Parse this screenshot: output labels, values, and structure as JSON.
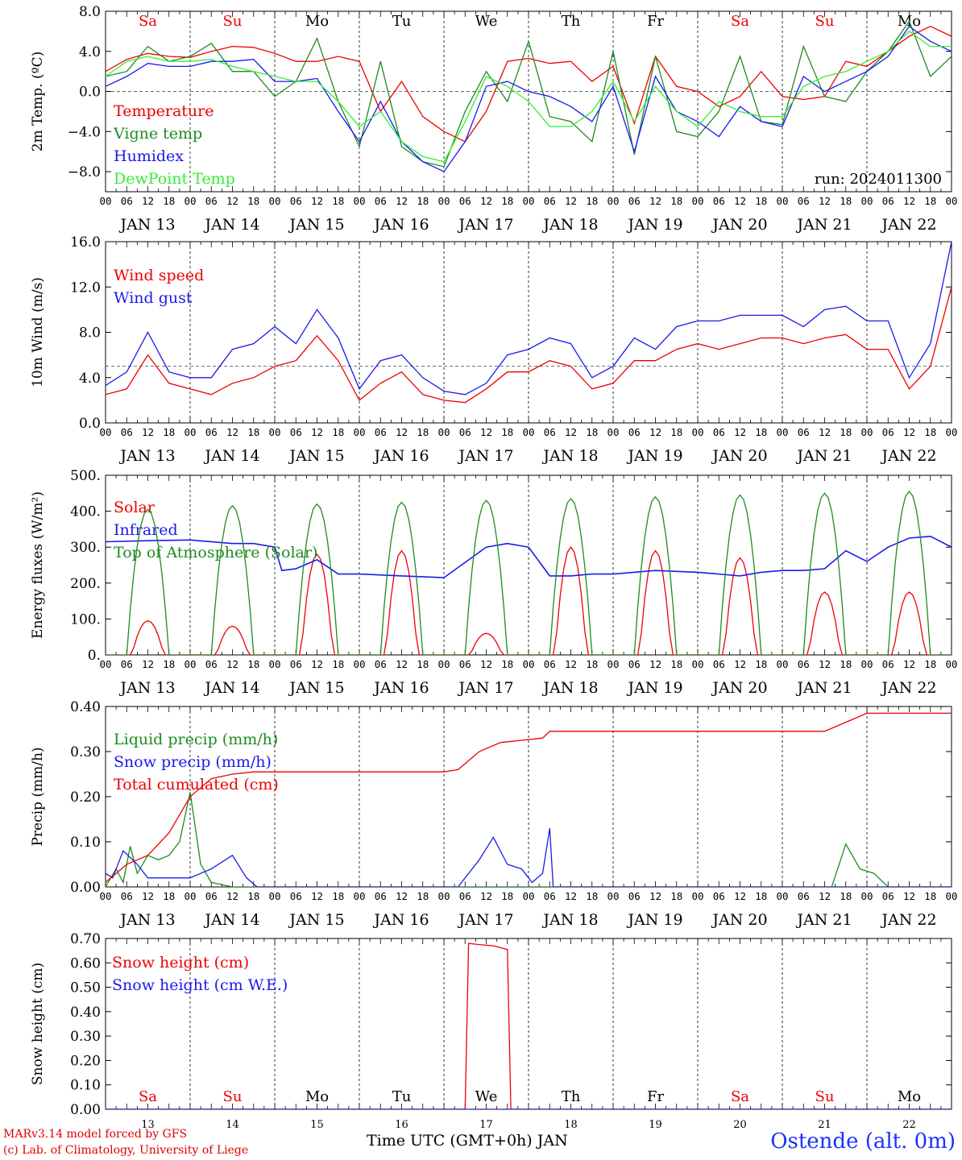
{
  "colors": {
    "red": "#ee0000",
    "darkgreen": "#1e8c1e",
    "blue": "#1a1aee",
    "lightgreen": "#33ee33",
    "axis": "#000000",
    "weekend": "#ee0000",
    "weekday": "#000000"
  },
  "days": [
    "Sa",
    "Su",
    "Mo",
    "Tu",
    "We",
    "Th",
    "Fr",
    "Sa",
    "Su",
    "Mo"
  ],
  "weekend_flags": [
    true,
    true,
    false,
    false,
    false,
    false,
    false,
    true,
    true,
    false
  ],
  "date_labels": [
    "JAN 13",
    "JAN 14",
    "JAN 15",
    "JAN 16",
    "JAN 17",
    "JAN 18",
    "JAN 19",
    "JAN 20",
    "JAN 21",
    "JAN 22"
  ],
  "bottom_day_numbers": [
    "13",
    "14",
    "15",
    "16",
    "17",
    "18",
    "19",
    "20",
    "21",
    "22"
  ],
  "hour_ticks": [
    "00",
    "06",
    "12",
    "18"
  ],
  "credits": {
    "line1": "MARv3.14 model forced by GFS",
    "line2": "(c) Lab. of Climatology, University of Liege"
  },
  "xaxis_title": "Time UTC (GMT+0h) JAN",
  "station": "Ostende (alt. 0m)",
  "run_label": "run: 2024011300",
  "chart_data": [
    {
      "type": "line",
      "ylabel": "2m Temp. (ºC)",
      "ylim": [
        -10,
        8
      ],
      "yticks": [
        "8.0",
        "4.0",
        "0.0",
        "−4.0",
        "−8.0"
      ],
      "ytick_values": [
        8,
        4,
        0,
        -4,
        -8
      ],
      "refline": 0,
      "series": [
        {
          "name": "Temperature",
          "color": "red",
          "x": [
            0,
            6,
            12,
            18,
            24,
            30,
            36,
            42,
            48,
            54,
            60,
            66,
            72,
            78,
            84,
            90,
            96,
            102,
            108,
            114,
            120,
            126,
            132,
            138,
            144,
            150,
            156,
            162,
            168,
            174,
            180,
            186,
            192,
            198,
            204,
            210,
            216,
            222,
            228,
            234,
            240
          ],
          "y": [
            2.0,
            3.2,
            3.8,
            3.5,
            3.4,
            4.0,
            4.5,
            4.4,
            3.8,
            3.0,
            3.0,
            3.5,
            3.0,
            -2.0,
            1.0,
            -2.5,
            -4.0,
            -5.0,
            -2.0,
            3.0,
            3.3,
            2.8,
            3.0,
            1.0,
            2.5,
            -3.2,
            3.5,
            0.5,
            0.0,
            -1.5,
            -0.5,
            2.0,
            -0.5,
            -0.8,
            -0.5,
            3.0,
            2.5,
            4.0,
            5.5,
            6.5,
            5.5
          ]
        },
        {
          "name": "Vigne temp",
          "color": "darkgreen",
          "x": [
            0,
            6,
            12,
            18,
            24,
            30,
            36,
            42,
            48,
            54,
            60,
            66,
            72,
            78,
            84,
            90,
            96,
            102,
            108,
            114,
            120,
            126,
            132,
            138,
            144,
            150,
            156,
            162,
            168,
            174,
            180,
            186,
            192,
            198,
            204,
            210,
            216,
            222,
            228,
            234,
            240
          ],
          "y": [
            1.5,
            2.0,
            4.5,
            3.0,
            3.5,
            4.8,
            2.0,
            2.0,
            -0.5,
            1.0,
            5.3,
            -1.0,
            -5.5,
            3.0,
            -5.5,
            -7.0,
            -7.5,
            -2.0,
            2.0,
            -1.0,
            5.0,
            -2.5,
            -3.0,
            -5.0,
            4.0,
            -6.3,
            3.5,
            -4.0,
            -4.5,
            -2.0,
            3.5,
            -3.0,
            -3.3,
            4.5,
            -0.5,
            -1.0,
            2.0,
            4.0,
            7.0,
            1.5,
            3.5
          ]
        },
        {
          "name": "Humidex",
          "color": "blue",
          "x": [
            0,
            6,
            12,
            18,
            24,
            30,
            36,
            42,
            48,
            54,
            60,
            66,
            72,
            78,
            84,
            90,
            96,
            102,
            108,
            114,
            120,
            126,
            132,
            138,
            144,
            150,
            156,
            162,
            168,
            174,
            180,
            186,
            192,
            198,
            204,
            210,
            216,
            222,
            228,
            234,
            240
          ],
          "y": [
            0.5,
            1.5,
            2.8,
            2.5,
            2.5,
            3.0,
            3.0,
            3.2,
            1.0,
            1.0,
            1.3,
            -2.0,
            -5.0,
            -1.0,
            -5.0,
            -7.0,
            -8.0,
            -5.0,
            0.5,
            1.0,
            0.0,
            -0.5,
            -1.5,
            -3.0,
            0.5,
            -6.0,
            1.5,
            -2.0,
            -3.0,
            -4.5,
            -1.5,
            -3.0,
            -3.5,
            1.5,
            0.0,
            1.0,
            2.0,
            3.5,
            6.5,
            5.0,
            4.0
          ]
        },
        {
          "name": "DewPoint Temp",
          "color": "lightgreen",
          "x": [
            0,
            6,
            12,
            18,
            24,
            30,
            36,
            42,
            48,
            54,
            60,
            66,
            72,
            78,
            84,
            90,
            96,
            102,
            108,
            114,
            120,
            126,
            132,
            138,
            144,
            150,
            156,
            162,
            168,
            174,
            180,
            186,
            192,
            198,
            204,
            210,
            216,
            222,
            228,
            234,
            240
          ],
          "y": [
            1.5,
            3.0,
            3.5,
            3.0,
            3.0,
            3.2,
            2.5,
            2.0,
            1.5,
            1.0,
            1.0,
            -1.0,
            -3.5,
            -2.0,
            -5.0,
            -6.5,
            -7.0,
            -3.0,
            1.5,
            0.5,
            -1.0,
            -3.5,
            -3.5,
            -2.0,
            1.0,
            -3.0,
            0.5,
            -2.0,
            -3.5,
            -1.0,
            -2.0,
            -2.5,
            -2.5,
            0.5,
            1.5,
            2.0,
            3.0,
            4.0,
            6.0,
            4.5,
            4.5
          ]
        }
      ]
    },
    {
      "type": "line",
      "ylabel": "10m Wind (m/s)",
      "ylim": [
        0,
        16
      ],
      "yticks": [
        "16.0",
        "12.0",
        "8.0",
        "4.0",
        "0.0"
      ],
      "ytick_values": [
        16,
        12,
        8,
        4,
        0
      ],
      "refline": 5,
      "series": [
        {
          "name": "Wind speed",
          "color": "red",
          "x": [
            0,
            6,
            12,
            18,
            24,
            30,
            36,
            42,
            48,
            54,
            60,
            66,
            72,
            78,
            84,
            90,
            96,
            102,
            108,
            114,
            120,
            126,
            132,
            138,
            144,
            150,
            156,
            162,
            168,
            174,
            180,
            186,
            192,
            198,
            204,
            210,
            216,
            222,
            228,
            234,
            240
          ],
          "y": [
            2.5,
            3.0,
            6.0,
            3.5,
            3.0,
            2.5,
            3.5,
            4.0,
            5.0,
            5.5,
            7.7,
            5.5,
            2.0,
            3.5,
            4.5,
            2.5,
            2.0,
            1.8,
            3.0,
            4.5,
            4.5,
            5.5,
            5.0,
            3.0,
            3.5,
            5.5,
            5.5,
            6.5,
            7.0,
            6.5,
            7.0,
            7.5,
            7.5,
            7.0,
            7.5,
            7.8,
            6.5,
            6.5,
            3.0,
            5.0,
            12.0
          ]
        },
        {
          "name": "Wind gust",
          "color": "blue",
          "x": [
            0,
            6,
            12,
            18,
            24,
            30,
            36,
            42,
            48,
            54,
            60,
            66,
            72,
            78,
            84,
            90,
            96,
            102,
            108,
            114,
            120,
            126,
            132,
            138,
            144,
            150,
            156,
            162,
            168,
            174,
            180,
            186,
            192,
            198,
            204,
            210,
            216,
            222,
            228,
            234,
            240
          ],
          "y": [
            3.3,
            4.5,
            8.0,
            4.5,
            4.0,
            4.0,
            6.5,
            7.0,
            8.5,
            7.0,
            10.0,
            7.5,
            3.0,
            5.5,
            6.0,
            4.0,
            2.8,
            2.5,
            3.5,
            6.0,
            6.5,
            7.5,
            7.0,
            4.0,
            5.0,
            7.5,
            6.5,
            8.5,
            9.0,
            9.0,
            9.5,
            9.5,
            9.5,
            8.5,
            10.0,
            10.3,
            9.0,
            9.0,
            4.0,
            7.0,
            16.0
          ]
        }
      ]
    },
    {
      "type": "line",
      "ylabel": "Energy fluxes (W/m²)",
      "ylim": [
        0,
        500
      ],
      "yticks": [
        "500.",
        "400.",
        "300.",
        "200.",
        "100.",
        "0."
      ],
      "ytick_values": [
        500,
        400,
        300,
        200,
        100,
        0
      ],
      "refline": null,
      "series": [
        {
          "name": "Solar",
          "color": "red",
          "peaks": [
            95,
            80,
            280,
            290,
            60,
            300,
            290,
            270,
            175,
            175
          ]
        },
        {
          "name": "Infrared",
          "color": "blue",
          "x": [
            0,
            12,
            24,
            36,
            42,
            48,
            50,
            54,
            60,
            66,
            72,
            84,
            96,
            108,
            114,
            120,
            126,
            132,
            138,
            144,
            156,
            168,
            180,
            186,
            192,
            198,
            204,
            210,
            216,
            222,
            228,
            234,
            240
          ],
          "y": [
            315,
            318,
            320,
            310,
            310,
            300,
            235,
            240,
            265,
            225,
            225,
            220,
            215,
            300,
            310,
            300,
            220,
            220,
            225,
            225,
            235,
            230,
            220,
            230,
            235,
            235,
            240,
            290,
            260,
            300,
            325,
            330,
            300
          ]
        },
        {
          "name": "Top of Atmosphere (Solar)",
          "color": "darkgreen",
          "peaks": [
            405,
            415,
            420,
            425,
            430,
            435,
            440,
            445,
            450,
            455
          ]
        }
      ]
    },
    {
      "type": "line",
      "ylabel": "Precip (mm/h)",
      "ylim": [
        0,
        0.4
      ],
      "yticks": [
        "0.40",
        "0.30",
        "0.20",
        "0.10",
        "0.00"
      ],
      "ytick_values": [
        0.4,
        0.3,
        0.2,
        0.1,
        0
      ],
      "refline": null,
      "series": [
        {
          "name": "Liquid precip (mm/h)",
          "color": "darkgreen",
          "x": [
            0,
            3,
            5,
            7,
            9,
            12,
            15,
            18,
            21,
            24,
            27,
            30,
            36,
            48,
            96,
            108,
            114,
            120,
            126,
            200,
            206,
            210,
            214,
            218,
            222,
            240
          ],
          "y": [
            0.0,
            0.04,
            0.01,
            0.09,
            0.03,
            0.07,
            0.06,
            0.07,
            0.1,
            0.21,
            0.05,
            0.01,
            0.0,
            0.0,
            0.0,
            0.0,
            0.0,
            0.0,
            0.0,
            0.0,
            0.0,
            0.095,
            0.04,
            0.03,
            0.0,
            0.0
          ]
        },
        {
          "name": "Snow precip (mm/h)",
          "color": "blue",
          "x": [
            0,
            2,
            5,
            9,
            12,
            18,
            24,
            30,
            36,
            40,
            43,
            48,
            96,
            100,
            106,
            110,
            114,
            118,
            121,
            124,
            126,
            127,
            130,
            132,
            140,
            240
          ],
          "y": [
            0.03,
            0.02,
            0.08,
            0.05,
            0.02,
            0.02,
            0.02,
            0.04,
            0.07,
            0.02,
            0.0,
            0.0,
            0.0,
            0.0,
            0.06,
            0.11,
            0.05,
            0.04,
            0.01,
            0.03,
            0.13,
            0.0,
            0.0,
            0.0,
            0.0,
            0.0
          ]
        },
        {
          "name": "Total cumulated (cm)",
          "color": "red",
          "x": [
            0,
            6,
            12,
            18,
            24,
            30,
            36,
            42,
            48,
            60,
            72,
            84,
            96,
            100,
            106,
            112,
            118,
            124,
            126,
            132,
            144,
            168,
            192,
            204,
            210,
            216,
            240
          ],
          "y": [
            0.01,
            0.05,
            0.07,
            0.12,
            0.2,
            0.24,
            0.25,
            0.255,
            0.255,
            0.255,
            0.255,
            0.255,
            0.255,
            0.26,
            0.3,
            0.32,
            0.325,
            0.33,
            0.345,
            0.345,
            0.345,
            0.345,
            0.345,
            0.345,
            0.365,
            0.385,
            0.385
          ]
        }
      ]
    },
    {
      "type": "line",
      "ylabel": "Snow height (cm)",
      "ylim": [
        0,
        0.7
      ],
      "yticks": [
        "0.70",
        "0.60",
        "0.50",
        "0.40",
        "0.30",
        "0.20",
        "0.10",
        "0.00"
      ],
      "ytick_values": [
        0.7,
        0.6,
        0.5,
        0.4,
        0.3,
        0.2,
        0.1,
        0
      ],
      "refline": null,
      "series": [
        {
          "name": "Snow height (cm)",
          "color": "red",
          "x": [
            0,
            102,
            103,
            106,
            110,
            114,
            115,
            240
          ],
          "y": [
            0,
            0,
            0.68,
            0.675,
            0.67,
            0.655,
            0,
            0
          ]
        },
        {
          "name": "Snow height (cm W.E.)",
          "color": "blue",
          "x": [
            0,
            240
          ],
          "y": [
            0,
            0
          ]
        }
      ]
    }
  ]
}
